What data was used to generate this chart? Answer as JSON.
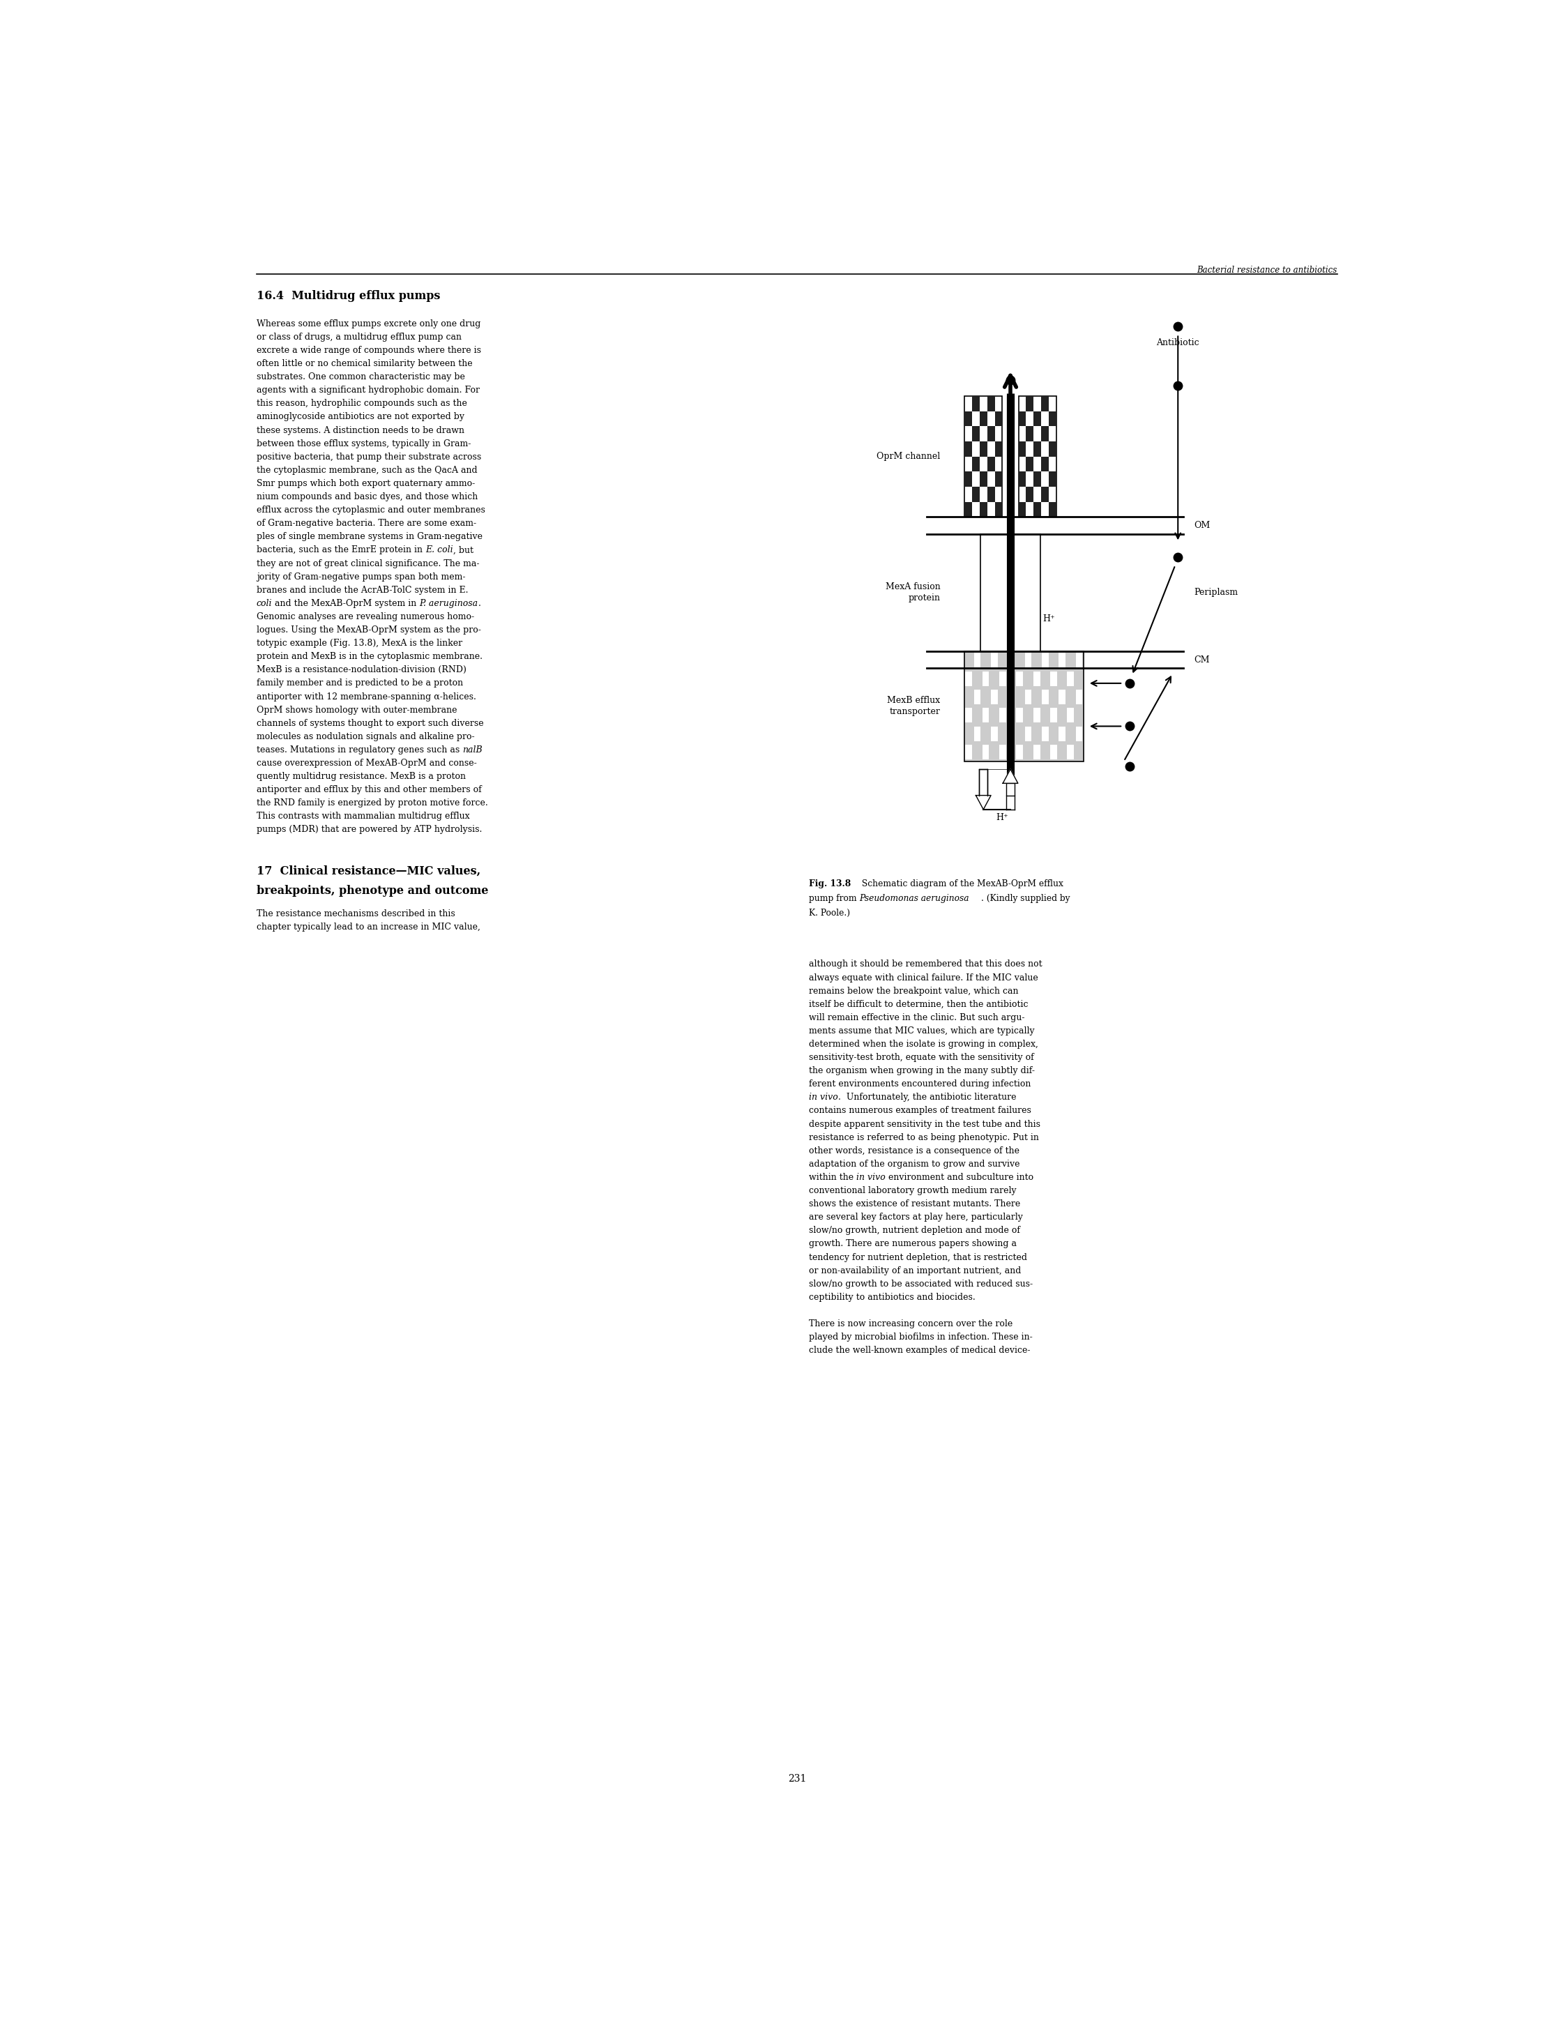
{
  "page_width": 22.3,
  "page_height": 29.04,
  "background_color": "#ffffff",
  "header_text": "Bacterial resistance to antibiotics",
  "page_number": "231",
  "section_heading": "16.4  Multidrug efflux pumps",
  "left_col_lines": [
    "Whereas some efflux pumps excrete only one drug",
    "or class of drugs, a multidrug efflux pump can",
    "excrete a wide range of compounds where there is",
    "often little or no chemical similarity between the",
    "substrates. One common characteristic may be",
    "agents with a significant hydrophobic domain. For",
    "this reason, hydrophilic compounds such as the",
    "aminoglycoside antibiotics are not exported by",
    "these systems. A distinction needs to be drawn",
    "between those efflux systems, typically in Gram-",
    "positive bacteria, that pump their substrate across",
    "the cytoplasmic membrane, such as the QacA and",
    "Smr pumps which both export quaternary ammo-",
    "nium compounds and basic dyes, and those which",
    "efflux across the cytoplasmic and outer membranes",
    "of Gram-negative bacteria. There are some exam-",
    "ples of single membrane systems in Gram-negative",
    "bacteria, such as the EmrE protein in [italic]E. coli[/italic], but",
    "they are not of great clinical significance. The ma-",
    "jority of Gram-negative pumps span both mem-",
    "branes and include the AcrAB-TolC system in E.",
    "[italic]coli[/italic] and the MexAB-OprM system in [italic]P. aeruginosa[/italic].",
    "Genomic analyses are revealing numerous homo-",
    "logues. Using the MexAB-OprM system as the pro-",
    "totypic example (Fig. 13.8), MexA is the linker",
    "protein and MexB is in the cytoplasmic membrane.",
    "MexB is a resistance-nodulation-division (RND)",
    "family member and is predicted to be a proton",
    "antiporter with 12 membrane-spanning α-helices.",
    "OprM shows homology with outer-membrane",
    "channels of systems thought to export such diverse",
    "molecules as nodulation signals and alkaline pro-",
    "teases. Mutations in regulatory genes such as [italic]nalB[/italic]",
    "cause overexpression of MexAB-OprM and conse-",
    "quently multidrug resistance. MexB is a proton",
    "antiporter and efflux by this and other members of",
    "the RND family is energized by proton motive force.",
    "This contrasts with mammalian multidrug efflux",
    "pumps (MDR) that are powered by ATP hydrolysis."
  ],
  "section2_heading_line1": "17  Clinical resistance—MIC values,",
  "section2_heading_line2": "breakpoints, phenotype and outcome",
  "left_col2_lines": [
    "The resistance mechanisms described in this",
    "chapter typically lead to an increase in MIC value,"
  ],
  "right_col_lines": [
    "although it should be remembered that this does not",
    "always equate with clinical failure. If the MIC value",
    "remains below the breakpoint value, which can",
    "itself be difficult to determine, then the antibiotic",
    "will remain effective in the clinic. But such argu-",
    "ments assume that MIC values, which are typically",
    "determined when the isolate is growing in complex,",
    "sensitivity-test broth, equate with the sensitivity of",
    "the organism when growing in the many subtly dif-",
    "ferent environments encountered during infection",
    "[italic]in vivo[/italic].  Unfortunately, the antibiotic literature",
    "contains numerous examples of treatment failures",
    "despite apparent sensitivity in the test tube and this",
    "resistance is referred to as being phenotypic. Put in",
    "other words, resistance is a consequence of the",
    "adaptation of the organism to grow and survive",
    "within the [italic]in vivo[/italic] environment and subculture into",
    "conventional laboratory growth medium rarely",
    "shows the existence of resistant mutants. There",
    "are several key factors at play here, particularly",
    "slow/no growth, nutrient depletion and mode of",
    "growth. There are numerous papers showing a",
    "tendency for nutrient depletion, that is restricted",
    "or non-availability of an important nutrient, and",
    "slow/no growth to be associated with reduced sus-",
    "ceptibility to antibiotics and biocides.",
    "",
    "There is now increasing concern over the role",
    "played by microbial biofilms in infection. These in-",
    "clude the well-known examples of medical device-"
  ],
  "fig_caption_bold": "Fig. 13.8",
  "fig_caption_rest": " Schematic diagram of the MexAB-OprM efflux pump from [italic]Pseudomonas aeruginosa[/italic]. (Kindly supplied by K. Poole.)"
}
